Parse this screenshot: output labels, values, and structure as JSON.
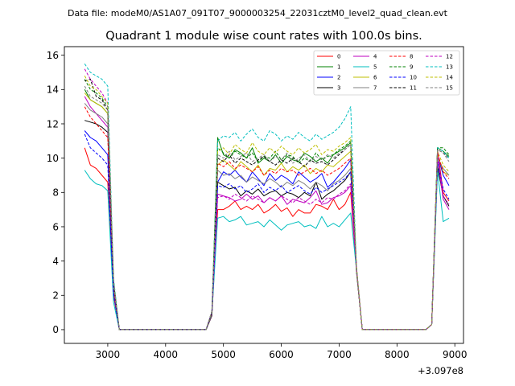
{
  "figure": {
    "suptitle": "Data file: modeM0/AS1A07_091T07_9000003254_22031cztM0_level2_quad_clean.evt",
    "offset_text": "+3.097e8"
  },
  "chart_data": {
    "type": "line",
    "title": "Quadrant 1 module wise count rates with 100.0s bins.",
    "xlabel": "",
    "ylabel": "",
    "x_offset": 309700000,
    "xlim": [
      2250,
      9150
    ],
    "ylim": [
      -0.8,
      16.5
    ],
    "xticks": [
      3000,
      4000,
      5000,
      6000,
      7000,
      8000,
      9000
    ],
    "yticks": [
      0,
      2,
      4,
      6,
      8,
      10,
      12,
      14,
      16
    ],
    "xtick_labels": [
      "3000",
      "4000",
      "5000",
      "6000",
      "7000",
      "8000",
      "9000"
    ],
    "ytick_labels": [
      "0",
      "2",
      "4",
      "6",
      "8",
      "10",
      "12",
      "14",
      "16"
    ],
    "grid": false,
    "legend": {
      "placement": "top-right",
      "columns": 4
    },
    "x": [
      2600,
      2700,
      2800,
      2900,
      3000,
      3100,
      3200,
      3300,
      3400,
      3500,
      3600,
      3700,
      3800,
      3900,
      4000,
      4100,
      4200,
      4300,
      4400,
      4500,
      4600,
      4700,
      4800,
      4900,
      5000,
      5100,
      5200,
      5300,
      5400,
      5500,
      5600,
      5700,
      5800,
      5900,
      6000,
      6100,
      6200,
      6300,
      6400,
      6500,
      6600,
      6700,
      6800,
      6900,
      7000,
      7100,
      7200,
      7300,
      7400,
      7500,
      7600,
      7700,
      7800,
      7900,
      8000,
      8100,
      8200,
      8300,
      8400,
      8500,
      8600,
      8700,
      8800,
      8900
    ],
    "series": [
      {
        "name": "0",
        "color": "#ff0000",
        "dash": false,
        "levels": [
          10.6,
          9.6,
          9.4,
          9.0,
          8.6,
          2.0
        ]
      },
      {
        "name": "1",
        "color": "#008000",
        "dash": false,
        "levels": [
          14.0,
          13.4,
          13.2,
          13.0,
          12.6,
          2.6
        ]
      },
      {
        "name": "2",
        "color": "#0000ff",
        "dash": false,
        "levels": [
          11.6,
          11.2,
          11.0,
          10.6,
          10.2,
          2.3
        ]
      },
      {
        "name": "3",
        "color": "#000000",
        "dash": false,
        "levels": [
          12.2,
          12.1,
          12.0,
          11.8,
          11.5,
          2.5
        ]
      },
      {
        "name": "4",
        "color": "#bf00bf",
        "dash": false,
        "levels": [
          13.6,
          13.0,
          12.6,
          12.2,
          11.8,
          2.4
        ]
      },
      {
        "name": "5",
        "color": "#00bfbf",
        "dash": false,
        "levels": [
          9.3,
          8.8,
          8.5,
          8.4,
          8.1,
          1.6
        ]
      },
      {
        "name": "6",
        "color": "#bfbf00",
        "dash": false,
        "levels": [
          13.8,
          13.4,
          13.2,
          13.0,
          12.6,
          2.6
        ]
      },
      {
        "name": "7",
        "color": "#808080",
        "dash": false,
        "levels": [
          13.2,
          12.8,
          12.6,
          12.4,
          12.0,
          2.5
        ]
      },
      {
        "name": "8",
        "color": "#ff0000",
        "dash": true,
        "levels": [
          13.0,
          12.4,
          12.0,
          11.6,
          11.2,
          2.4
        ]
      },
      {
        "name": "9",
        "color": "#008000",
        "dash": true,
        "levels": [
          14.6,
          14.0,
          13.8,
          13.5,
          13.0,
          2.8
        ]
      },
      {
        "name": "10",
        "color": "#0000ff",
        "dash": true,
        "levels": [
          11.4,
          10.6,
          10.3,
          10.0,
          9.6,
          2.1
        ]
      },
      {
        "name": "11",
        "color": "#000000",
        "dash": true,
        "levels": [
          14.5,
          14.6,
          13.6,
          13.4,
          12.8,
          2.8
        ]
      },
      {
        "name": "12",
        "color": "#bf00bf",
        "dash": true,
        "levels": [
          15.2,
          14.6,
          14.2,
          13.8,
          13.2,
          2.9
        ]
      },
      {
        "name": "13",
        "color": "#00bfbf",
        "dash": true,
        "levels": [
          15.5,
          15.0,
          14.8,
          14.6,
          14.2,
          3.0
        ]
      },
      {
        "name": "14",
        "color": "#bfbf00",
        "dash": true,
        "levels": [
          14.8,
          14.2,
          14.0,
          13.6,
          13.2,
          2.8
        ]
      },
      {
        "name": "15",
        "color": "#808080",
        "dash": true,
        "levels": [
          14.2,
          13.6,
          13.4,
          13.2,
          12.8,
          2.7
        ]
      }
    ],
    "mid_levels": [
      [
        7.0,
        7.0,
        7.2,
        7.5,
        7.0,
        7.2,
        7.0,
        7.3,
        6.8,
        7.0,
        7.3,
        6.9,
        7.1,
        6.6,
        7.0,
        6.8,
        6.8,
        7.3,
        7.2,
        7.0,
        7.6,
        7.0,
        7.3,
        8.0
      ],
      [
        11.2,
        10.2,
        10.0,
        10.5,
        10.3,
        10.0,
        10.6,
        9.7,
        10.0,
        9.8,
        10.2,
        9.7,
        10.1,
        9.9,
        9.8,
        10.3,
        10.1,
        9.8,
        10.0,
        9.7,
        10.2,
        10.4,
        10.6,
        10.9
      ],
      [
        8.6,
        9.2,
        9.0,
        9.3,
        8.9,
        8.6,
        9.2,
        8.8,
        8.4,
        9.1,
        8.7,
        9.0,
        8.8,
        8.5,
        9.2,
        8.9,
        8.6,
        8.8,
        9.1,
        8.3,
        8.6,
        9.0,
        9.4,
        9.9
      ],
      [
        8.6,
        8.4,
        8.2,
        8.3,
        7.8,
        8.1,
        7.9,
        8.2,
        7.8,
        8.0,
        8.1,
        7.8,
        8.0,
        7.9,
        7.7,
        8.0,
        7.8,
        8.6,
        7.6,
        7.9,
        8.1,
        8.4,
        8.7,
        9.2
      ],
      [
        7.9,
        7.8,
        7.7,
        7.5,
        7.6,
        7.9,
        7.6,
        7.8,
        7.4,
        7.7,
        7.5,
        7.8,
        7.3,
        7.6,
        7.5,
        7.4,
        7.7,
        8.1,
        7.3,
        7.4,
        7.7,
        7.8,
        8.0,
        8.4
      ],
      [
        6.5,
        6.6,
        6.3,
        6.4,
        6.6,
        6.1,
        6.2,
        6.3,
        6.0,
        6.4,
        6.1,
        5.8,
        6.1,
        6.2,
        6.3,
        6.0,
        6.1,
        5.9,
        6.6,
        6.0,
        6.2,
        6.0,
        6.4,
        6.8
      ],
      [
        9.6,
        9.9,
        9.6,
        9.3,
        9.8,
        9.5,
        9.2,
        9.6,
        9.0,
        9.4,
        9.3,
        9.7,
        9.2,
        9.5,
        9.3,
        9.6,
        9.1,
        9.4,
        9.2,
        9.6,
        9.5,
        9.8,
        10.1,
        10.4
      ],
      [
        9.3,
        9.0,
        9.1,
        8.8,
        9.0,
        8.6,
        8.9,
        8.7,
        8.5,
        8.8,
        8.6,
        8.3,
        8.6,
        8.4,
        8.7,
        8.5,
        8.2,
        8.6,
        8.4,
        8.1,
        8.5,
        8.7,
        9.0,
        9.4
      ],
      [
        9.7,
        9.5,
        9.8,
        9.4,
        9.6,
        9.4,
        9.2,
        9.5,
        9.0,
        9.3,
        9.1,
        9.4,
        9.2,
        9.3,
        9.0,
        9.2,
        9.4,
        9.1,
        9.3,
        9.0,
        9.2,
        9.4,
        9.7,
        10.0
      ],
      [
        10.6,
        10.3,
        10.0,
        10.4,
        10.2,
        10.0,
        10.3,
        9.8,
        10.1,
        10.0,
        10.4,
        9.9,
        10.2,
        10.1,
        9.7,
        10.0,
        9.8,
        10.3,
        9.9,
        10.1,
        10.2,
        10.5,
        10.7,
        11.0
      ],
      [
        8.4,
        8.3,
        8.5,
        8.2,
        8.4,
        8.0,
        8.2,
        8.5,
        8.0,
        8.3,
        8.1,
        8.4,
        8.0,
        8.2,
        8.4,
        8.1,
        7.9,
        8.3,
        8.0,
        8.2,
        8.4,
        8.6,
        8.8,
        9.2
      ],
      [
        10.0,
        9.8,
        10.2,
        9.7,
        10.0,
        9.8,
        9.6,
        9.9,
        10.1,
        9.8,
        9.6,
        9.9,
        9.7,
        10.0,
        9.8,
        9.5,
        9.9,
        9.7,
        9.8,
        9.6,
        9.9,
        10.2,
        10.5,
        10.8
      ],
      [
        7.7,
        7.8,
        7.6,
        7.9,
        7.7,
        7.5,
        7.8,
        7.6,
        7.4,
        7.7,
        7.5,
        7.8,
        7.6,
        7.4,
        7.7,
        7.5,
        7.3,
        7.6,
        7.4,
        7.7,
        7.6,
        7.9,
        8.1,
        8.5
      ],
      [
        11.0,
        11.3,
        11.2,
        11.5,
        11.0,
        11.4,
        11.7,
        11.2,
        11.0,
        11.6,
        11.4,
        11.0,
        11.3,
        11.1,
        11.5,
        11.2,
        11.0,
        11.4,
        11.1,
        11.3,
        11.5,
        11.8,
        12.3,
        13.0
      ],
      [
        10.4,
        10.6,
        10.2,
        10.8,
        10.5,
        10.3,
        10.9,
        10.4,
        10.2,
        10.6,
        10.3,
        10.7,
        10.4,
        10.2,
        10.6,
        10.3,
        10.5,
        10.8,
        10.2,
        10.5,
        10.4,
        10.7,
        10.9,
        11.2
      ],
      [
        10.2,
        10.0,
        10.4,
        9.9,
        10.1,
        10.3,
        9.8,
        10.0,
        10.2,
        9.8,
        10.1,
        9.9,
        10.3,
        9.7,
        10.0,
        10.2,
        9.8,
        10.1,
        9.9,
        10.2,
        10.0,
        10.3,
        10.5,
        10.8
      ]
    ],
    "tail_levels": [
      [
        10.5,
        8.0,
        7.5
      ],
      [
        10.6,
        10.4,
        10.1
      ],
      [
        10.2,
        9.0,
        8.4
      ],
      [
        9.5,
        7.8,
        7.2
      ],
      [
        10.0,
        7.6,
        7.0
      ],
      [
        9.3,
        6.3,
        6.5
      ],
      [
        10.2,
        9.2,
        9.0
      ],
      [
        10.0,
        9.4,
        9.0
      ],
      [
        10.3,
        9.2,
        8.8
      ],
      [
        10.6,
        10.6,
        10.2
      ],
      [
        9.8,
        8.2,
        7.6
      ],
      [
        10.5,
        10.3,
        10.0
      ],
      [
        10.4,
        7.8,
        7.3
      ],
      [
        10.6,
        10.4,
        10.0
      ],
      [
        10.4,
        9.6,
        9.2
      ],
      [
        10.5,
        10.3,
        9.8
      ]
    ]
  }
}
